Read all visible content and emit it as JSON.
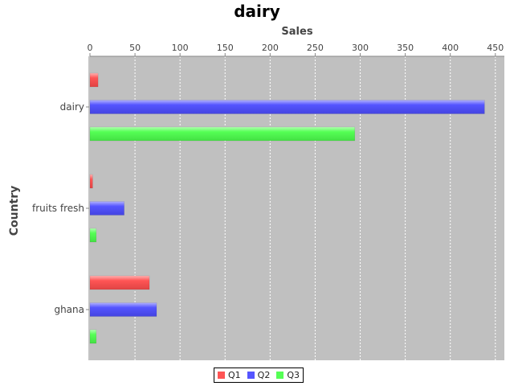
{
  "chart_data": {
    "type": "bar",
    "orientation": "horizontal",
    "title": "dairy",
    "xlabel": "Sales",
    "ylabel": "Country",
    "categories": [
      "dairy",
      "fruits fresh",
      "ghana"
    ],
    "series": [
      {
        "name": "Q1",
        "color": "#ff5555",
        "values": [
          9,
          3,
          66
        ]
      },
      {
        "name": "Q2",
        "color": "#5555ff",
        "values": [
          438,
          38,
          74
        ]
      },
      {
        "name": "Q3",
        "color": "#55ff55",
        "values": [
          294,
          7,
          7
        ]
      }
    ],
    "xlim": [
      0,
      460
    ],
    "xticks": [
      0,
      50,
      100,
      150,
      200,
      250,
      300,
      350,
      400,
      450
    ],
    "grid": true,
    "legend_position": "bottom",
    "background": "#c0c0c0"
  }
}
